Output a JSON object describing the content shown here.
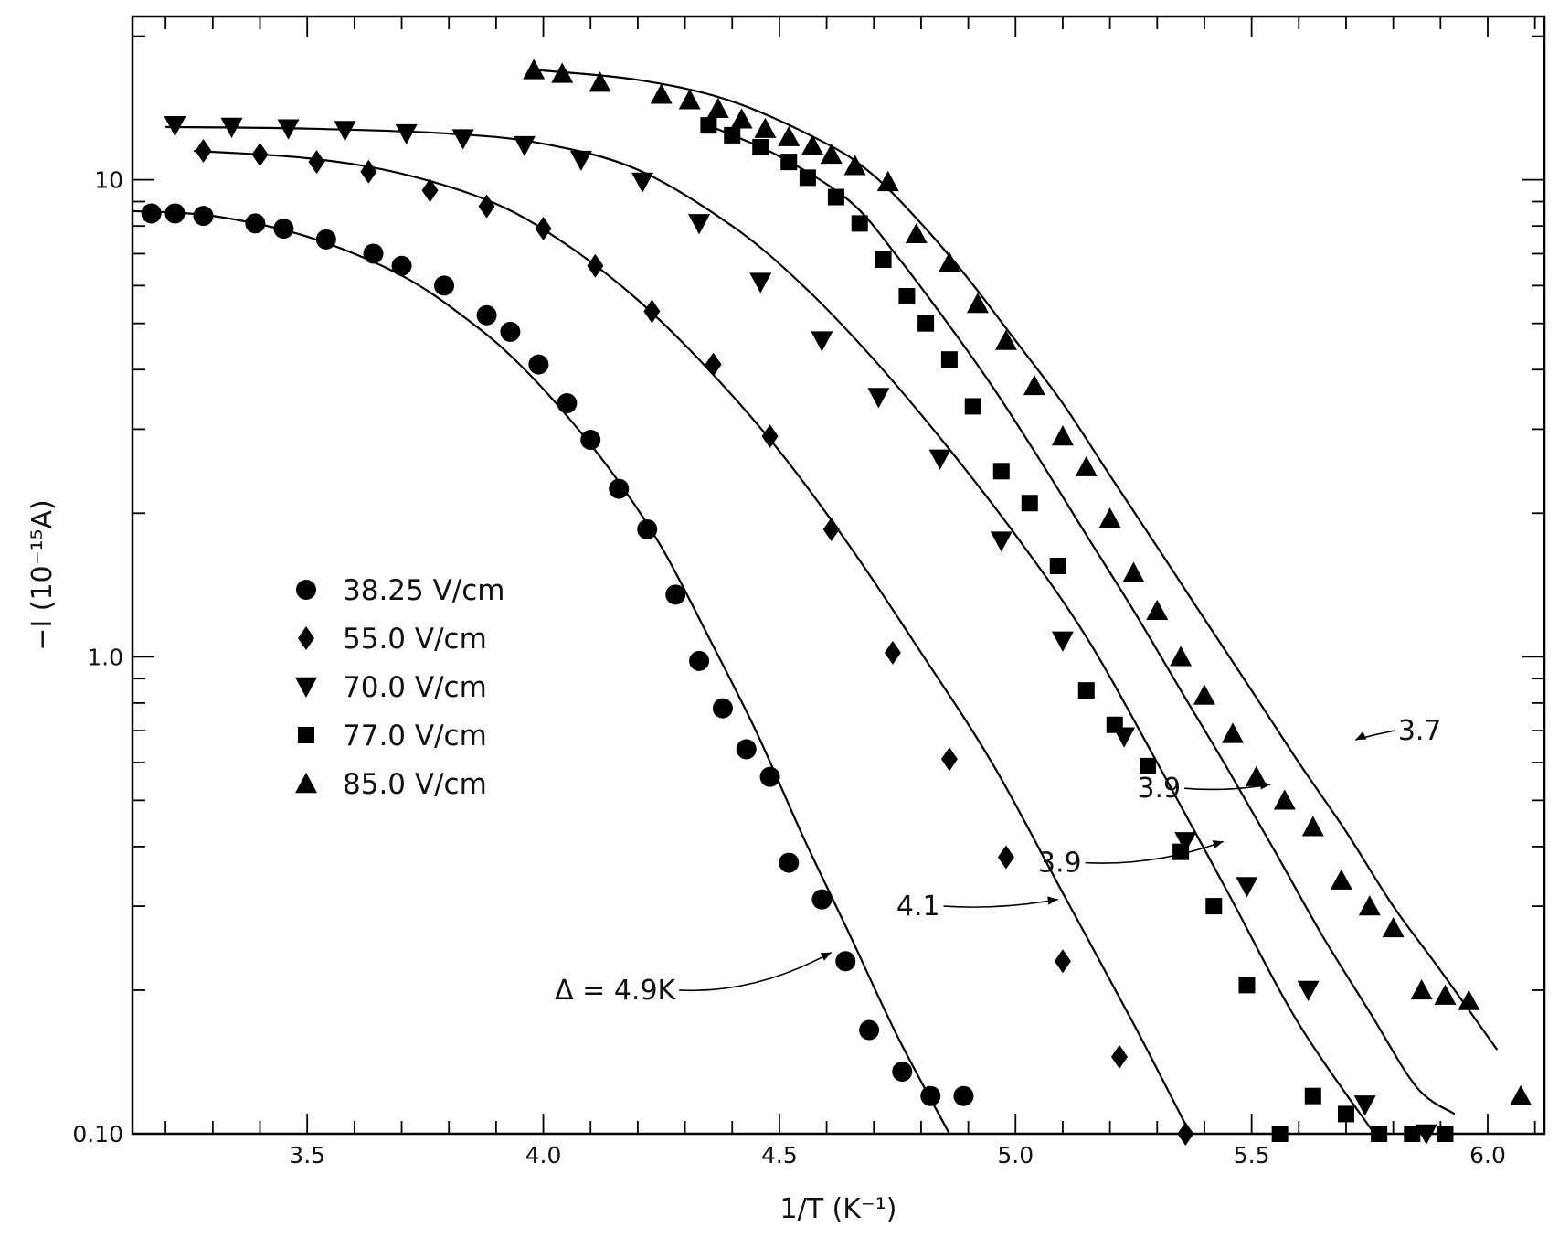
{
  "chart_data": {
    "type": "scatter",
    "title": "",
    "xlabel": "1/T (K⁻¹)",
    "ylabel": "−I (10⁻¹⁵A)",
    "xlim": [
      3.13,
      6.12
    ],
    "ylim": [
      0.1,
      22
    ],
    "y_scale": "log",
    "grid": false,
    "legend_position": "center-left",
    "x_ticks": [
      {
        "value": 3.5,
        "label": "3.5"
      },
      {
        "value": 4.0,
        "label": "4.0"
      },
      {
        "value": 4.5,
        "label": "4.5"
      },
      {
        "value": 5.0,
        "label": "5.0"
      },
      {
        "value": 5.5,
        "label": "5.5"
      },
      {
        "value": 6.0,
        "label": "6.0"
      }
    ],
    "y_ticks": [
      {
        "value": 10,
        "label": "10"
      },
      {
        "value": 1.0,
        "label": "1.0"
      },
      {
        "value": 0.1,
        "label": "0.10"
      }
    ],
    "series": [
      {
        "name": "38.25 V/cm",
        "marker": "circle",
        "color": "#000000",
        "x": [
          3.17,
          3.22,
          3.28,
          3.39,
          3.45,
          3.54,
          3.64,
          3.7,
          3.79,
          3.88,
          3.93,
          3.99,
          4.05,
          4.1,
          4.16,
          4.22,
          4.28,
          4.33,
          4.38,
          4.43,
          4.48,
          4.52,
          4.59,
          4.64,
          4.69,
          4.76,
          4.82,
          4.89
        ],
        "y": [
          8.5,
          8.5,
          8.4,
          8.1,
          7.9,
          7.5,
          7.0,
          6.6,
          6.0,
          5.2,
          4.8,
          4.1,
          3.4,
          2.85,
          2.25,
          1.85,
          1.35,
          0.98,
          0.78,
          0.64,
          0.56,
          0.37,
          0.31,
          0.23,
          0.165,
          0.135,
          0.12,
          0.12
        ]
      },
      {
        "name": "55.0 V/cm",
        "marker": "diamond",
        "color": "#000000",
        "x": [
          3.28,
          3.4,
          3.52,
          3.63,
          3.76,
          3.88,
          4.0,
          4.11,
          4.23,
          4.36,
          4.48,
          4.61,
          4.74,
          4.86,
          4.98,
          5.1,
          5.22,
          5.36
        ],
        "y": [
          11.5,
          11.3,
          10.9,
          10.4,
          9.5,
          8.8,
          7.9,
          6.6,
          5.3,
          4.1,
          2.9,
          1.85,
          1.02,
          0.61,
          0.38,
          0.23,
          0.145,
          0.1
        ]
      },
      {
        "name": "70.0 V/cm",
        "marker": "triangle-down",
        "color": "#000000",
        "x": [
          3.22,
          3.34,
          3.46,
          3.58,
          3.71,
          3.83,
          3.96,
          4.08,
          4.21,
          4.33,
          4.46,
          4.59,
          4.71,
          4.84,
          4.97,
          5.1,
          5.23,
          5.36,
          5.49,
          5.62,
          5.74,
          5.87
        ],
        "y": [
          13.0,
          12.9,
          12.8,
          12.7,
          12.5,
          12.2,
          11.8,
          11.0,
          9.9,
          8.1,
          6.1,
          4.6,
          3.5,
          2.6,
          1.75,
          1.08,
          0.68,
          0.41,
          0.33,
          0.2,
          0.115,
          0.1
        ]
      },
      {
        "name": "77.0 V/cm",
        "marker": "square",
        "color": "#000000",
        "x": [
          4.35,
          4.4,
          4.46,
          4.52,
          4.56,
          4.62,
          4.67,
          4.72,
          4.77,
          4.81,
          4.86,
          4.91,
          4.97,
          5.03,
          5.09,
          5.15,
          5.21,
          5.28,
          5.35,
          5.42,
          5.49,
          5.56,
          5.63,
          5.7,
          5.77,
          5.84,
          5.91
        ],
        "y": [
          13.0,
          12.4,
          11.7,
          10.9,
          10.1,
          9.2,
          8.1,
          6.8,
          5.7,
          5.0,
          4.2,
          3.35,
          2.45,
          2.1,
          1.55,
          0.85,
          0.72,
          0.59,
          0.39,
          0.3,
          0.205,
          0.1,
          0.12,
          0.11,
          0.1,
          0.1,
          0.1
        ]
      },
      {
        "name": "85.0 V/cm",
        "marker": "triangle-up",
        "color": "#000000",
        "x": [
          3.98,
          4.04,
          4.12,
          4.25,
          4.31,
          4.37,
          4.42,
          4.47,
          4.52,
          4.57,
          4.61,
          4.66,
          4.73,
          4.79,
          4.86,
          4.92,
          4.98,
          5.04,
          5.1,
          5.15,
          5.2,
          5.25,
          5.3,
          5.35,
          5.4,
          5.46,
          5.51,
          5.57,
          5.63,
          5.69,
          5.75,
          5.8,
          5.86,
          5.91,
          5.96,
          6.07
        ],
        "y": [
          17.0,
          16.7,
          16.0,
          15.1,
          14.7,
          14.1,
          13.4,
          12.8,
          12.3,
          11.8,
          11.3,
          10.7,
          9.9,
          7.7,
          6.7,
          5.5,
          4.6,
          3.7,
          2.9,
          2.5,
          1.95,
          1.5,
          1.25,
          1.0,
          0.83,
          0.69,
          0.56,
          0.5,
          0.44,
          0.34,
          0.3,
          0.27,
          0.2,
          0.195,
          0.19,
          0.12
        ]
      }
    ],
    "fit_lines": [
      {
        "series": "38.25 V/cm",
        "x": [
          3.13,
          3.3,
          3.5,
          3.7,
          3.85,
          3.95,
          4.05,
          4.15,
          4.25,
          4.35,
          4.45,
          4.55,
          4.65,
          4.75,
          4.86
        ],
        "y": [
          8.6,
          8.4,
          7.6,
          6.3,
          5.0,
          4.1,
          3.2,
          2.4,
          1.7,
          1.1,
          0.7,
          0.42,
          0.26,
          0.16,
          0.1
        ]
      },
      {
        "series": "55.0 V/cm",
        "x": [
          3.26,
          3.5,
          3.7,
          3.9,
          4.05,
          4.2,
          4.35,
          4.5,
          4.65,
          4.8,
          4.95,
          5.1,
          5.25,
          5.37
        ],
        "y": [
          11.5,
          11.1,
          10.3,
          8.9,
          7.3,
          5.6,
          4.0,
          2.7,
          1.7,
          1.02,
          0.6,
          0.32,
          0.17,
          0.1
        ]
      },
      {
        "series": "70.0 V/cm",
        "x": [
          3.2,
          3.5,
          3.8,
          4.0,
          4.2,
          4.4,
          4.55,
          4.7,
          4.85,
          5.0,
          5.15,
          5.3,
          5.45,
          5.6,
          5.76
        ],
        "y": [
          12.9,
          12.8,
          12.5,
          11.9,
          10.5,
          8.0,
          6.0,
          4.2,
          2.8,
          1.8,
          1.1,
          0.6,
          0.32,
          0.17,
          0.1
        ]
      },
      {
        "series": "77.0 V/cm",
        "x": [
          4.35,
          4.5,
          4.65,
          4.75,
          4.85,
          4.95,
          5.05,
          5.15,
          5.25,
          5.35,
          5.45,
          5.55,
          5.65,
          5.75,
          5.85,
          5.93
        ],
        "y": [
          13.0,
          11.2,
          9.0,
          6.9,
          5.1,
          3.7,
          2.6,
          1.8,
          1.25,
          0.85,
          0.58,
          0.39,
          0.26,
          0.18,
          0.125,
          0.11
        ]
      },
      {
        "series": "85.0 V/cm",
        "x": [
          3.98,
          4.2,
          4.4,
          4.6,
          4.7,
          4.8,
          4.9,
          5.0,
          5.1,
          5.2,
          5.3,
          5.4,
          5.5,
          5.6,
          5.7,
          5.8,
          5.9,
          6.02
        ],
        "y": [
          17.0,
          16.2,
          14.6,
          11.9,
          10.2,
          8.1,
          6.2,
          4.6,
          3.4,
          2.4,
          1.7,
          1.2,
          0.85,
          0.6,
          0.43,
          0.3,
          0.22,
          0.15
        ]
      }
    ],
    "annotations": [
      {
        "text": "Δ = 4.9K",
        "x": 4.28,
        "y": 0.2,
        "arrow_to": [
          4.61,
          0.24
        ]
      },
      {
        "text": "4.1",
        "x": 4.84,
        "y": 0.3,
        "arrow_to": [
          5.09,
          0.31
        ]
      },
      {
        "text": "3.9",
        "x": 5.14,
        "y": 0.37,
        "arrow_to": [
          5.44,
          0.41
        ]
      },
      {
        "text": "3.9",
        "x": 5.35,
        "y": 0.53,
        "arrow_to": [
          5.54,
          0.54
        ]
      },
      {
        "text": "3.7",
        "x": 5.81,
        "y": 0.7,
        "arrow_to": [
          5.72,
          0.67
        ]
      }
    ]
  }
}
